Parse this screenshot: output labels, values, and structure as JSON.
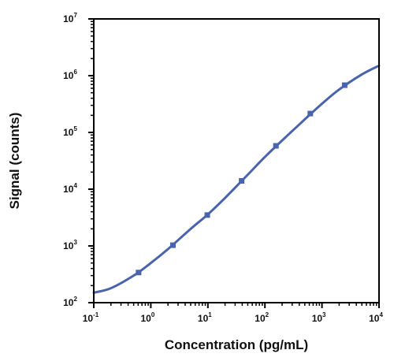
{
  "chart_data": {
    "type": "line",
    "title": "",
    "xlabel": "Concentration (pg/mL)",
    "ylabel": "Signal (counts)",
    "x_scale": "log10",
    "y_scale": "log10",
    "xlim": [
      0.1,
      10000
    ],
    "ylim": [
      100,
      10000000
    ],
    "x_ticks": [
      {
        "base": "10",
        "exp": "-1",
        "value": 0.1
      },
      {
        "base": "10",
        "exp": "0",
        "value": 1
      },
      {
        "base": "10",
        "exp": "1",
        "value": 10
      },
      {
        "base": "10",
        "exp": "2",
        "value": 100
      },
      {
        "base": "10",
        "exp": "3",
        "value": 1000
      },
      {
        "base": "10",
        "exp": "4",
        "value": 10000
      }
    ],
    "y_ticks": [
      {
        "base": "10",
        "exp": "2",
        "value": 100
      },
      {
        "base": "10",
        "exp": "3",
        "value": 1000
      },
      {
        "base": "10",
        "exp": "4",
        "value": 10000
      },
      {
        "base": "10",
        "exp": "5",
        "value": 100000
      },
      {
        "base": "10",
        "exp": "6",
        "value": 1000000
      },
      {
        "base": "10",
        "exp": "7",
        "value": 10000000
      }
    ],
    "grid": false,
    "series": [
      {
        "color": "#4a63ad",
        "marker": "square",
        "points": [
          {
            "x": 0.61,
            "y": 340
          },
          {
            "x": 2.44,
            "y": 1030
          },
          {
            "x": 9.77,
            "y": 3500
          },
          {
            "x": 39.1,
            "y": 14000
          },
          {
            "x": 156,
            "y": 58000
          },
          {
            "x": 625,
            "y": 215000
          },
          {
            "x": 2500,
            "y": 680000
          }
        ],
        "fit_curve": [
          {
            "x": 0.1,
            "y": 150
          },
          {
            "x": 0.2,
            "y": 180
          },
          {
            "x": 0.5,
            "y": 300
          },
          {
            "x": 1,
            "y": 500
          },
          {
            "x": 2,
            "y": 880
          },
          {
            "x": 5,
            "y": 2000
          },
          {
            "x": 10,
            "y": 3600
          },
          {
            "x": 20,
            "y": 7000
          },
          {
            "x": 50,
            "y": 18000
          },
          {
            "x": 100,
            "y": 37000
          },
          {
            "x": 200,
            "y": 72000
          },
          {
            "x": 500,
            "y": 170000
          },
          {
            "x": 1000,
            "y": 320000
          },
          {
            "x": 2000,
            "y": 570000
          },
          {
            "x": 5000,
            "y": 1050000
          },
          {
            "x": 10000,
            "y": 1500000
          }
        ]
      }
    ]
  }
}
